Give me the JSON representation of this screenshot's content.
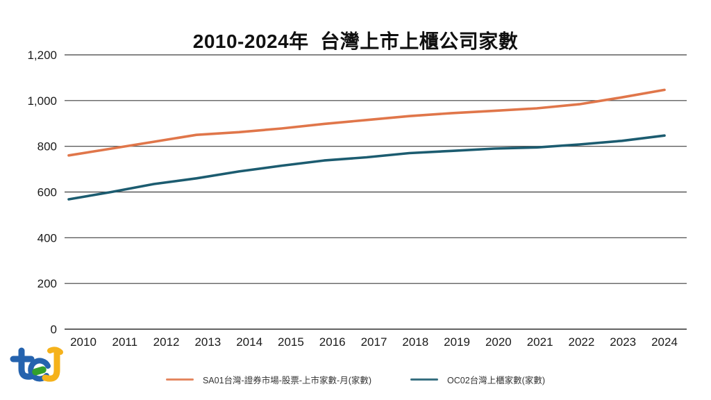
{
  "title": "2010-2024年  台灣上市上櫃公司家數",
  "logo": {
    "brand": "tej",
    "blue": "#2563AE",
    "yellow": "#F5B21B",
    "green": "#33A02C"
  },
  "legend": {
    "series1_label": "SA01台灣-證券市場-股票-上市家數-月(家數)",
    "series2_label": "OC02台灣上櫃家數(家數)"
  },
  "chart_data": {
    "type": "line",
    "title": "2010-2024年 台灣上市上櫃公司家數",
    "categories": [
      "2010",
      "2011",
      "2012",
      "2013",
      "2014",
      "2015",
      "2016",
      "2017",
      "2018",
      "2019",
      "2020",
      "2021",
      "2022",
      "2023",
      "2024"
    ],
    "series": [
      {
        "name": "SA01台灣-證券市場-股票-上市家數-月(家數)",
        "color": "#E0764A",
        "values": [
          760,
          790,
          820,
          850,
          862,
          878,
          898,
          915,
          932,
          945,
          955,
          966,
          984,
          1014,
          1047
        ]
      },
      {
        "name": "OC02台灣上櫃家數(家數)",
        "color": "#1C5C70",
        "values": [
          568,
          600,
          635,
          660,
          690,
          715,
          738,
          752,
          770,
          780,
          790,
          795,
          808,
          824,
          847
        ]
      }
    ],
    "xlabel": "",
    "ylabel": "",
    "ylim": [
      0,
      1200
    ],
    "yticks": {
      "values": [
        0,
        200,
        400,
        600,
        800,
        1000,
        1200
      ],
      "labels": [
        "0",
        "200",
        "400",
        "600",
        "800",
        "1,000",
        "1,200"
      ]
    },
    "grid": true,
    "gridline_color": "#3d3d3d",
    "legend_position": "bottom"
  }
}
